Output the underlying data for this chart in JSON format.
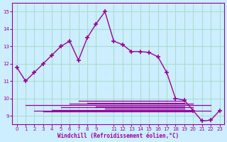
{
  "xlabel": "Windchill (Refroidissement éolien,°C)",
  "background_color": "#cceeff",
  "grid_color": "#aaddcc",
  "line_color": "#990099",
  "xlim": [
    -0.5,
    23.5
  ],
  "ylim": [
    8.5,
    15.5
  ],
  "yticks": [
    9,
    10,
    11,
    12,
    13,
    14,
    15
  ],
  "xticks": [
    0,
    1,
    2,
    3,
    4,
    5,
    6,
    7,
    8,
    9,
    11,
    12,
    13,
    14,
    15,
    16,
    17,
    18,
    19,
    20,
    21,
    22,
    23
  ],
  "main_line_x": [
    0,
    1,
    2,
    3,
    4,
    5,
    6,
    7,
    8,
    9,
    10,
    11,
    12,
    13,
    14,
    15,
    16,
    17,
    18,
    19,
    20,
    21,
    22,
    23
  ],
  "main_line_y": [
    11.8,
    11.0,
    11.5,
    12.0,
    12.5,
    13.0,
    13.3,
    12.2,
    13.5,
    14.3,
    15.0,
    13.3,
    13.1,
    12.7,
    12.7,
    12.65,
    12.4,
    11.5,
    10.0,
    9.9,
    9.3,
    8.7,
    8.75,
    9.3
  ],
  "flat_lines": [
    {
      "x": [
        1,
        22
      ],
      "y": [
        9.6,
        9.6
      ]
    },
    {
      "x": [
        2,
        22
      ],
      "y": [
        9.3,
        9.3
      ]
    },
    {
      "x": [
        3,
        20
      ],
      "y": [
        9.25,
        9.25
      ]
    },
    {
      "x": [
        4,
        20
      ],
      "y": [
        9.35,
        9.35
      ]
    },
    {
      "x": [
        5,
        20
      ],
      "y": [
        9.5,
        9.5
      ]
    },
    {
      "x": [
        6,
        20
      ],
      "y": [
        9.7,
        9.7
      ]
    },
    {
      "x": [
        7,
        19
      ],
      "y": [
        9.85,
        9.85
      ]
    },
    {
      "x": [
        8,
        19
      ],
      "y": [
        9.75,
        9.75
      ]
    },
    {
      "x": [
        9,
        19
      ],
      "y": [
        9.55,
        9.55
      ]
    },
    {
      "x": [
        10,
        19
      ],
      "y": [
        9.4,
        9.4
      ]
    }
  ]
}
